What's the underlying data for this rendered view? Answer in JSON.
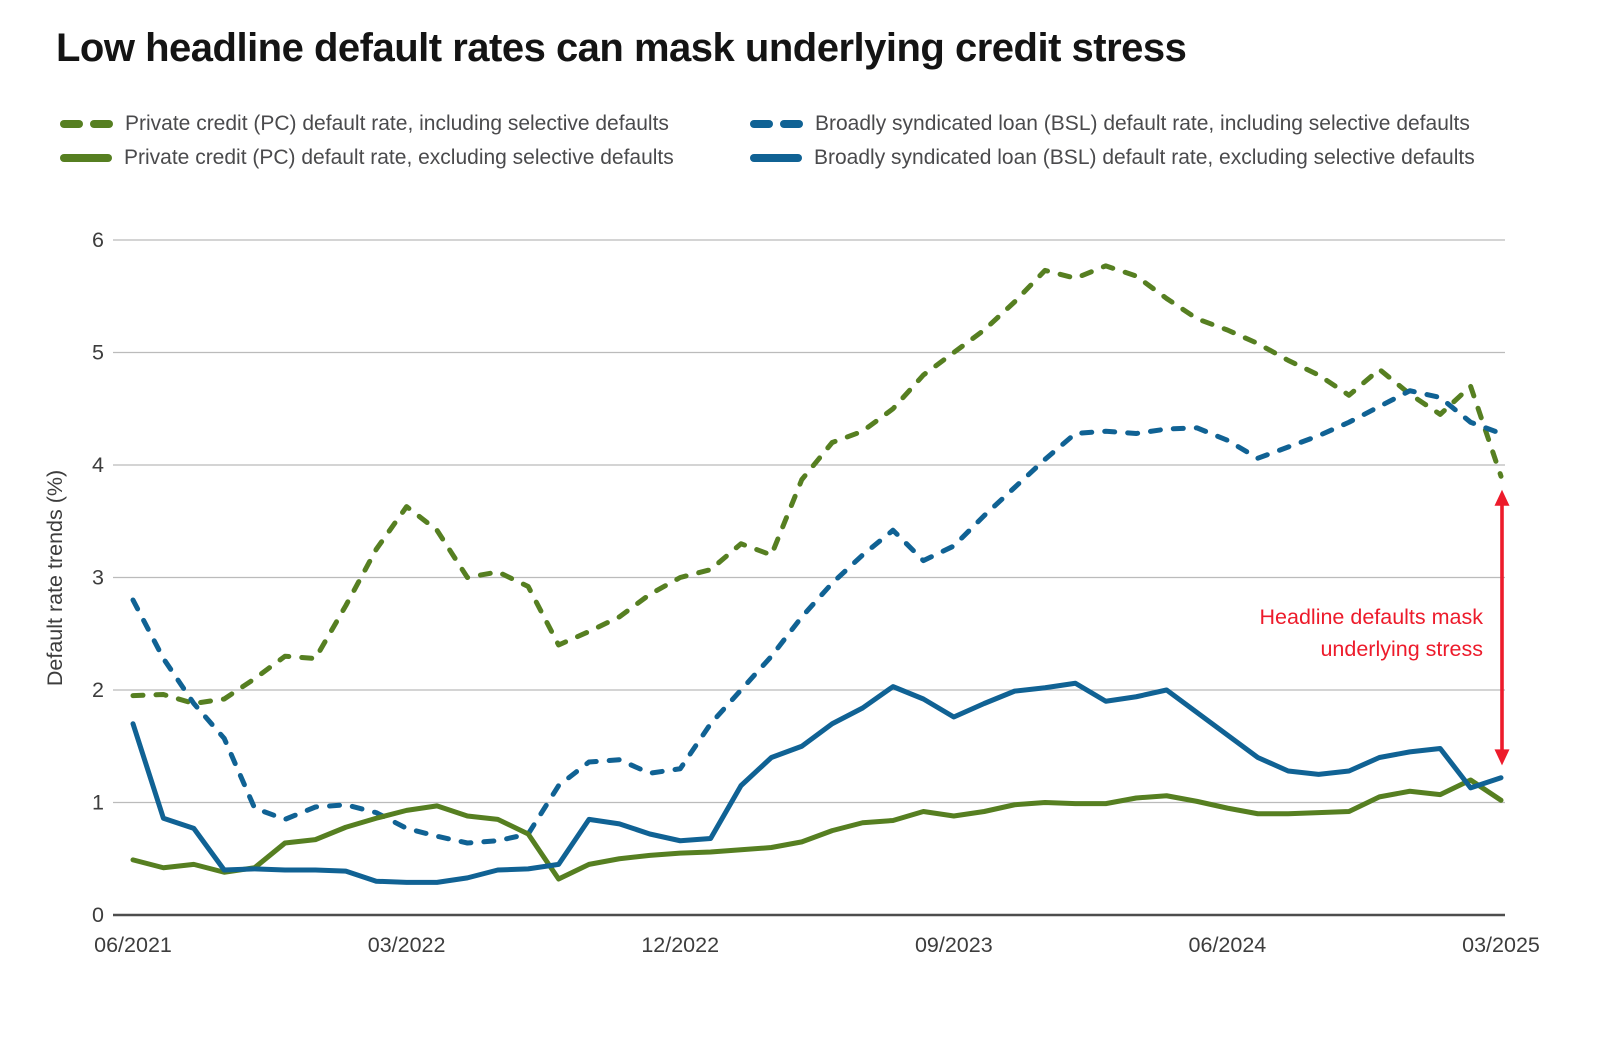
{
  "title": "Low headline default rates can mask underlying credit stress",
  "colors": {
    "green": "#567F21",
    "blue": "#106294",
    "red": "#ED1B2B",
    "grid": "#BBBBBB",
    "axis": "#4D4D4D",
    "tick_text": "#3D3D3D"
  },
  "legend": [
    {
      "label": "Private credit (PC) default rate, including selective defaults",
      "color": "green",
      "style": "dashed"
    },
    {
      "label": "Broadly syndicated loan (BSL) default rate, including selective defaults",
      "color": "blue",
      "style": "dashed"
    },
    {
      "label": "Private credit (PC) default rate, excluding selective defaults",
      "color": "green",
      "style": "solid"
    },
    {
      "label": "Broadly syndicated loan (BSL) default rate, excluding selective defaults",
      "color": "blue",
      "style": "solid"
    }
  ],
  "chart_data": {
    "type": "line",
    "title": "Low headline default rates can mask underlying credit stress",
    "ylabel": "Default rate trends (%)",
    "xlabel": "",
    "ylim": [
      0,
      6
    ],
    "y_ticks": [
      0,
      1,
      2,
      3,
      4,
      5,
      6
    ],
    "grid": "horizontal",
    "legend_position": "top",
    "frequency": "monthly",
    "x": [
      "06/2021",
      "07/2021",
      "08/2021",
      "09/2021",
      "10/2021",
      "11/2021",
      "12/2021",
      "01/2022",
      "02/2022",
      "03/2022",
      "04/2022",
      "05/2022",
      "06/2022",
      "07/2022",
      "08/2022",
      "09/2022",
      "10/2022",
      "11/2022",
      "12/2022",
      "01/2023",
      "02/2023",
      "03/2023",
      "04/2023",
      "05/2023",
      "06/2023",
      "07/2023",
      "08/2023",
      "09/2023",
      "10/2023",
      "11/2023",
      "12/2023",
      "01/2024",
      "02/2024",
      "03/2024",
      "04/2024",
      "05/2024",
      "06/2024",
      "07/2024",
      "08/2024",
      "09/2024",
      "10/2024",
      "11/2024",
      "12/2024",
      "01/2025",
      "02/2025",
      "03/2025"
    ],
    "x_tick_labels": [
      "06/2021",
      "03/2022",
      "12/2022",
      "09/2023",
      "06/2024",
      "03/2025"
    ],
    "x_tick_indices": [
      0,
      9,
      18,
      27,
      36,
      45
    ],
    "series": [
      {
        "name": "Private credit (PC) default rate, including selective defaults",
        "color": "green",
        "dash": true,
        "values": [
          1.95,
          1.96,
          1.88,
          1.92,
          2.1,
          2.3,
          2.28,
          2.75,
          3.25,
          3.63,
          3.42,
          3.0,
          3.05,
          2.92,
          2.4,
          2.52,
          2.65,
          2.85,
          3.0,
          3.07,
          3.3,
          3.2,
          3.87,
          4.2,
          4.3,
          4.5,
          4.8,
          5.0,
          5.2,
          5.45,
          5.73,
          5.66,
          5.77,
          5.68,
          5.48,
          5.3,
          5.2,
          5.08,
          4.93,
          4.8,
          4.62,
          4.85,
          4.63,
          4.45,
          4.7,
          3.9
        ]
      },
      {
        "name": "Broadly syndicated loan (BSL) default rate, including selective defaults",
        "color": "blue",
        "dash": true,
        "values": [
          2.8,
          2.28,
          1.88,
          1.57,
          0.95,
          0.85,
          0.96,
          0.98,
          0.91,
          0.77,
          0.7,
          0.64,
          0.66,
          0.72,
          1.15,
          1.36,
          1.38,
          1.26,
          1.3,
          1.7,
          2.0,
          2.3,
          2.65,
          2.95,
          3.2,
          3.42,
          3.15,
          3.28,
          3.55,
          3.8,
          4.05,
          4.28,
          4.3,
          4.28,
          4.32,
          4.33,
          4.22,
          4.06,
          4.16,
          4.26,
          4.38,
          4.52,
          4.66,
          4.6,
          4.38,
          4.28
        ]
      },
      {
        "name": "Private credit (PC) default rate, excluding selective defaults",
        "color": "green",
        "dash": false,
        "values": [
          0.49,
          0.42,
          0.45,
          0.38,
          0.42,
          0.64,
          0.67,
          0.78,
          0.86,
          0.93,
          0.97,
          0.88,
          0.85,
          0.72,
          0.32,
          0.45,
          0.5,
          0.53,
          0.55,
          0.56,
          0.58,
          0.6,
          0.65,
          0.75,
          0.82,
          0.84,
          0.92,
          0.88,
          0.92,
          0.98,
          1.0,
          0.99,
          0.99,
          1.04,
          1.06,
          1.01,
          0.95,
          0.9,
          0.9,
          0.91,
          0.92,
          1.05,
          1.1,
          1.07,
          1.2,
          1.02
        ]
      },
      {
        "name": "Broadly syndicated loan (BSL) default rate, excluding selective defaults",
        "color": "blue",
        "dash": false,
        "values": [
          1.7,
          0.86,
          0.77,
          0.4,
          0.41,
          0.4,
          0.4,
          0.39,
          0.3,
          0.29,
          0.29,
          0.33,
          0.4,
          0.41,
          0.45,
          0.85,
          0.81,
          0.72,
          0.66,
          0.68,
          1.15,
          1.4,
          1.5,
          1.7,
          1.84,
          2.03,
          1.92,
          1.76,
          1.88,
          1.99,
          2.02,
          2.06,
          1.9,
          1.94,
          2.0,
          1.8,
          1.6,
          1.4,
          1.28,
          1.25,
          1.28,
          1.4,
          1.45,
          1.48,
          1.13,
          1.22
        ]
      }
    ],
    "annotation": {
      "lines": [
        "Headline defaults mask",
        "underlying stress"
      ],
      "color": "red",
      "arrow": {
        "x_index": 45,
        "from_value": 3.78,
        "to_value": 1.33,
        "double_headed": true
      }
    }
  }
}
